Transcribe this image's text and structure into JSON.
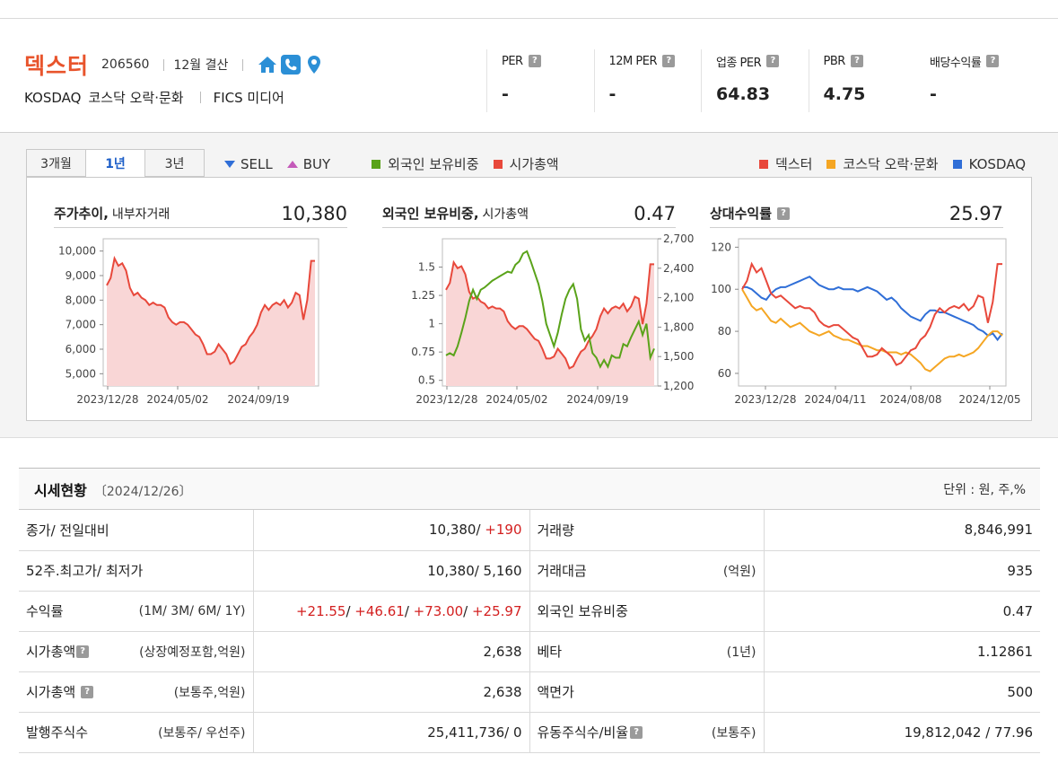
{
  "company": {
    "name": "덱스터",
    "code": "206560",
    "fiscal": "12월 결산",
    "market": "KOSDAQ",
    "sector": "코스닥 오락·문화",
    "fics": "FICS 미디어",
    "icons": [
      "home-icon",
      "phone-icon",
      "location-pin-icon"
    ]
  },
  "metrics": [
    {
      "label": "PER",
      "value": "-"
    },
    {
      "label": "12M PER",
      "value": "-"
    },
    {
      "label": "업종 PER",
      "value": "64.83"
    },
    {
      "label": "PBR",
      "value": "4.75"
    },
    {
      "label": "배당수익률",
      "value": "-"
    }
  ],
  "tabs": [
    "3개월",
    "1년",
    "3년"
  ],
  "active_tab": "1년",
  "legend_left": {
    "sell": "SELL",
    "buy": "BUY",
    "foreign": "외국인 보유비중",
    "mcap": "시가총액"
  },
  "legend_right": [
    {
      "label": "덱스터",
      "color": "#e8483b"
    },
    {
      "label": "코스닥 오락·문화",
      "color": "#f5a623"
    },
    {
      "label": "KOSDAQ",
      "color": "#2f6ed7"
    }
  ],
  "colors": {
    "red": "#e8483b",
    "green": "#5aa31a",
    "orange": "#f5a623",
    "blue": "#2f6ed7",
    "fill": "#f9d6d6",
    "brand": "#e8542c"
  },
  "panels": [
    {
      "title_bold": "주가추이,",
      "title_sub": "내부자거래",
      "value": "10,380"
    },
    {
      "title_bold": "외국인 보유비중,",
      "title_sub": "시가총액",
      "value": "0.47"
    },
    {
      "title_bold": "상대수익률",
      "title_sub": "",
      "value": "25.97"
    }
  ],
  "chart_data": [
    {
      "type": "area",
      "title": "주가추이",
      "x_ticks": [
        "2023/12/28",
        "2024/05/02",
        "2024/09/19"
      ],
      "y_ticks": [
        "10,000",
        "9,000",
        "8,000",
        "7,000",
        "6,000",
        "5,000"
      ],
      "ylim": [
        4500,
        10500
      ],
      "series": [
        {
          "name": "",
          "values": [
            8600,
            8900,
            9700,
            9400,
            9500,
            9200,
            8500,
            8200,
            8300,
            8100,
            8000,
            7800,
            7900,
            7800,
            7800,
            7700,
            7300,
            7100,
            7000,
            7100,
            7100,
            7000,
            6800,
            6600,
            6500,
            6200,
            5800,
            5800,
            5900,
            6200,
            6000,
            5800,
            5400,
            5500,
            5800,
            6100,
            6200,
            6500,
            6700,
            7000,
            7500,
            7800,
            7600,
            7800,
            7900,
            7800,
            8000,
            7700,
            7900,
            8300,
            8200,
            7200,
            8000,
            9600,
            9600
          ]
        }
      ]
    },
    {
      "type": "line",
      "title": "외국인 보유비중",
      "x_ticks": [
        "2023/12/28",
        "2024/05/02",
        "2024/09/19"
      ],
      "y_ticks": [
        "1.5",
        "1.25",
        "1",
        "0.75",
        "0.5"
      ],
      "y2_ticks": [
        "2,700",
        "2,400",
        "2,100",
        "1,800",
        "1,500",
        "1,200"
      ],
      "ylim": [
        0.45,
        1.75
      ],
      "y2lim": [
        1200,
        2700
      ],
      "series": [
        {
          "name": "외국인 보유비중",
          "values": [
            0.72,
            0.74,
            0.72,
            0.8,
            0.92,
            1.05,
            1.2,
            1.3,
            1.22,
            1.3,
            1.32,
            1.35,
            1.38,
            1.4,
            1.42,
            1.44,
            1.46,
            1.45,
            1.52,
            1.55,
            1.62,
            1.64,
            1.55,
            1.45,
            1.35,
            1.2,
            1.0,
            0.9,
            0.8,
            0.92,
            1.08,
            1.22,
            1.3,
            1.35,
            1.22,
            0.95,
            0.85,
            0.9,
            0.74,
            0.7,
            0.62,
            0.68,
            0.62,
            0.72,
            0.7,
            0.7,
            0.82,
            0.8,
            0.88,
            0.95,
            1.02,
            0.9,
            1.0,
            0.7,
            0.78
          ]
        },
        {
          "name": "시가총액",
          "values": [
            2180,
            2250,
            2460,
            2400,
            2420,
            2340,
            2160,
            2090,
            2110,
            2060,
            2040,
            1990,
            2010,
            1990,
            1990,
            1960,
            1860,
            1810,
            1780,
            1810,
            1810,
            1780,
            1730,
            1680,
            1660,
            1580,
            1480,
            1480,
            1500,
            1580,
            1530,
            1480,
            1380,
            1400,
            1480,
            1550,
            1580,
            1660,
            1710,
            1780,
            1910,
            1990,
            1940,
            1990,
            2010,
            1990,
            2040,
            1960,
            2010,
            2110,
            2090,
            1830,
            2040,
            2440,
            2440
          ]
        }
      ]
    },
    {
      "type": "line",
      "title": "상대수익률",
      "x_ticks": [
        "2023/12/28",
        "2024/04/11",
        "2024/08/08",
        "2024/12/05"
      ],
      "y_ticks": [
        "120",
        "100",
        "80",
        "60"
      ],
      "ylim": [
        54,
        124
      ],
      "series": [
        {
          "name": "덱스터",
          "values": [
            100,
            104,
            112,
            108,
            110,
            104,
            98,
            96,
            97,
            95,
            93,
            91,
            92,
            91,
            91,
            89,
            85,
            83,
            82,
            83,
            83,
            81,
            79,
            77,
            76,
            72,
            68,
            68,
            69,
            72,
            70,
            68,
            64,
            65,
            68,
            71,
            72,
            76,
            78,
            82,
            88,
            91,
            89,
            91,
            92,
            91,
            93,
            90,
            92,
            97,
            96,
            84,
            94,
            112,
            112
          ]
        },
        {
          "name": "코스닥 오락·문화",
          "values": [
            100,
            96,
            92,
            90,
            91,
            88,
            85,
            84,
            86,
            84,
            82,
            83,
            84,
            82,
            80,
            79,
            78,
            79,
            80,
            78,
            77,
            76,
            76,
            75,
            74,
            73,
            73,
            72,
            71,
            71,
            70,
            70,
            70,
            69,
            70,
            69,
            67,
            65,
            62,
            61,
            63,
            65,
            67,
            68,
            68,
            69,
            68,
            69,
            70,
            72,
            75,
            78,
            80,
            80,
            78
          ]
        },
        {
          "name": "KOSDAQ",
          "values": [
            101,
            101,
            100,
            98,
            96,
            95,
            98,
            100,
            101,
            101,
            102,
            103,
            104,
            105,
            106,
            104,
            102,
            101,
            100,
            100,
            101,
            100,
            100,
            100,
            99,
            100,
            101,
            100,
            99,
            97,
            95,
            96,
            94,
            91,
            89,
            87,
            86,
            85,
            88,
            90,
            90,
            89,
            89,
            88,
            87,
            86,
            85,
            84,
            83,
            81,
            80,
            78,
            79,
            76,
            79
          ]
        }
      ]
    }
  ],
  "table": {
    "title": "시세현황",
    "date": "〔2024/12/26〕",
    "unit": "단위 : 원, 주,%",
    "rows": [
      {
        "l1": "종가/ 전일대비",
        "l1s": "",
        "v1a": "10,380/ ",
        "v1b": "+190",
        "v1c": "",
        "l2": "거래량",
        "l2s": "",
        "v2": "8,846,991"
      },
      {
        "l1": "52주.최고가/ 최저가",
        "l1s": "",
        "v1a": "10,380/ 5,160",
        "v1b": "",
        "v1c": "",
        "l2": "거래대금",
        "l2s": "(억원)",
        "v2": "935"
      },
      {
        "l1": "수익률",
        "l1s": "(1M/ 3M/ 6M/ 1Y)",
        "v1a": "",
        "v1b": "",
        "v1c": "",
        "l2": "외국인 보유비중",
        "l2s": "",
        "v2": "0.47"
      },
      {
        "l1": "시가총액",
        "l1s": "(상장예정포함,억원)",
        "v1a": "2,638",
        "v1b": "",
        "v1c": "",
        "l2": "베타",
        "l2s": "(1년)",
        "v2": "1.12861"
      },
      {
        "l1": "시가총액",
        "l1s": "(보통주,억원)",
        "v1a": "2,638",
        "v1b": "",
        "v1c": "",
        "l2": "액면가",
        "l2s": "",
        "v2": "500"
      },
      {
        "l1": "발행주식수",
        "l1s": "(보통주/ 우선주)",
        "v1a": "25,411,736/ 0",
        "v1b": "",
        "v1c": "",
        "l2": "유동주식수/비율",
        "l2s": "(보통주)",
        "v2": "19,812,042 / 77.96"
      }
    ],
    "returns": [
      "+21.55",
      "+46.61",
      "+73.00",
      "+25.97"
    ]
  }
}
